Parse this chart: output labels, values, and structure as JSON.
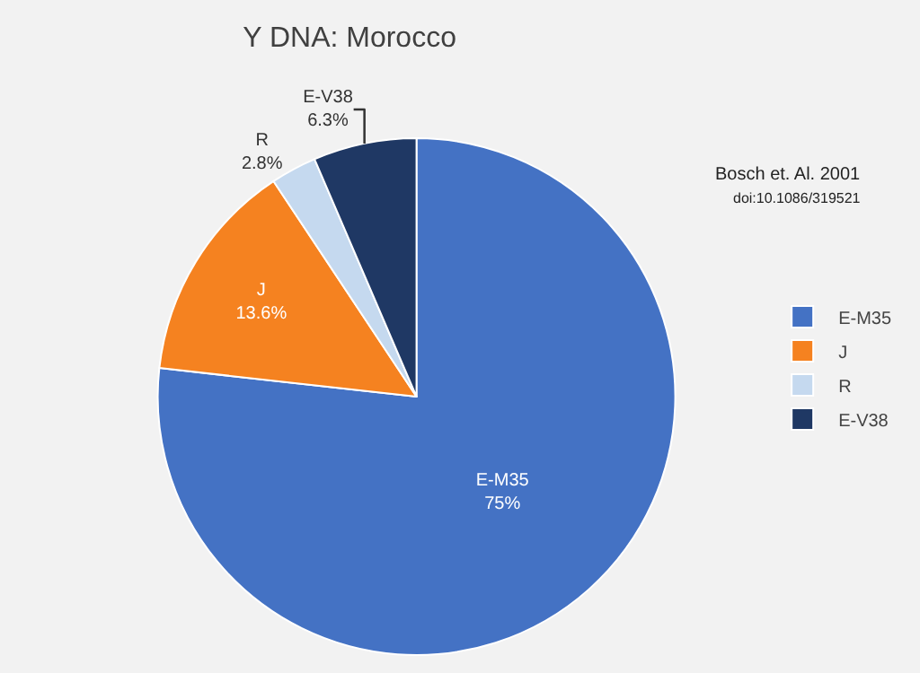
{
  "chart_data": {
    "type": "pie",
    "title": "Y DNA: Morocco",
    "categories": [
      "E-M35",
      "J",
      "R",
      "E-V38"
    ],
    "values": [
      75,
      13.6,
      2.8,
      6.3
    ],
    "colors": [
      "#4472c4",
      "#f58220",
      "#c5d9ef",
      "#1f3864"
    ],
    "value_labels": [
      "75%",
      "13.6%",
      "2.8%",
      "6.3%"
    ],
    "annotations": [
      "Bosch et. Al. 2001",
      "doi:10.1086/319521"
    ],
    "legend": "right"
  }
}
